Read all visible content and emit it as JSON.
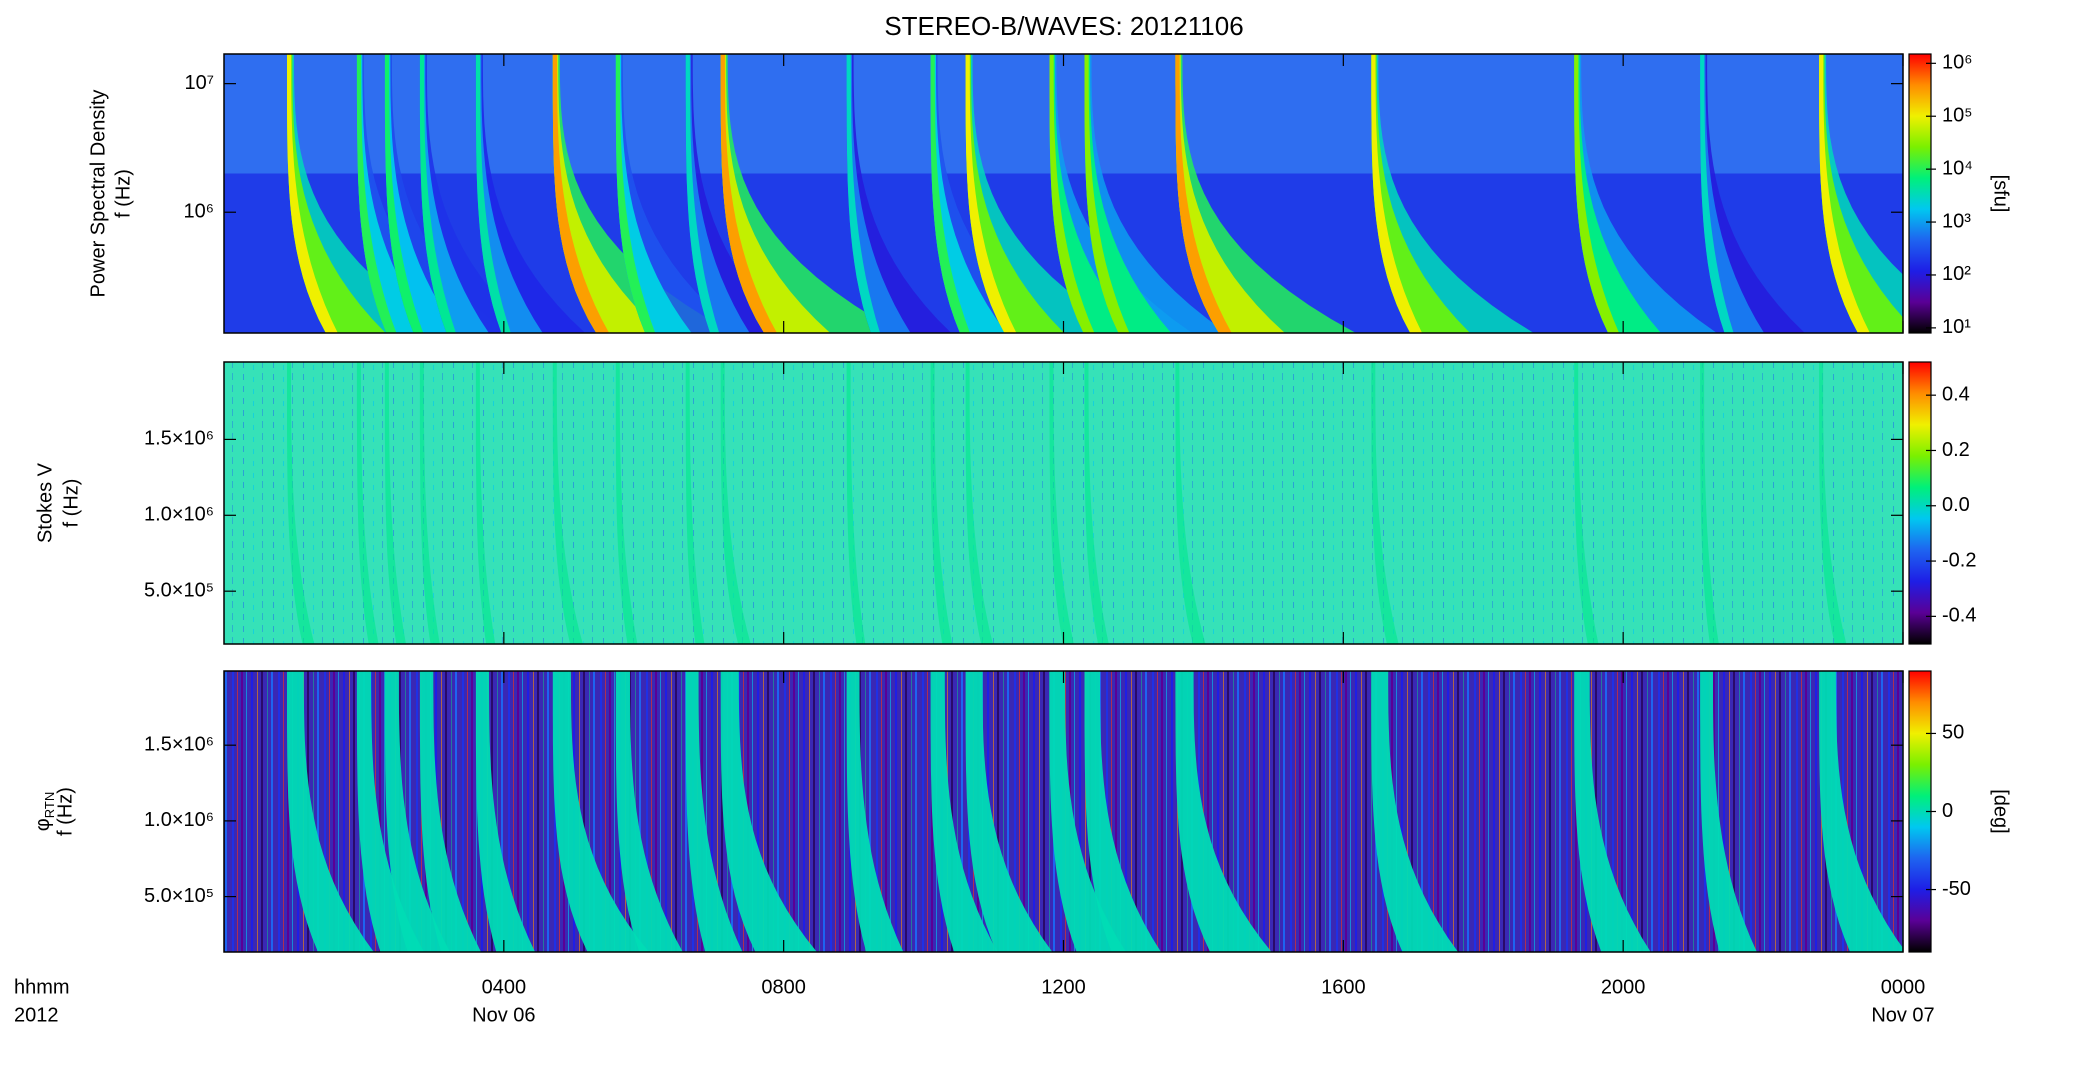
{
  "chart_data": [
    {
      "type": "spectrogram",
      "title": "STEREO-B/WAVES: 20121106",
      "ylabel": [
        "Power Spectral Density",
        "f (Hz)"
      ],
      "xlim": [
        0,
        24
      ],
      "ylim": [
        115000,
        17000000
      ],
      "ylog": true,
      "yticks": [
        {
          "value": 1000000,
          "label": "10⁶"
        },
        {
          "value": 10000000,
          "label": "10⁷"
        }
      ],
      "clim": [
        8,
        1500000
      ],
      "clog": true,
      "cticks": [
        {
          "value": 10,
          "label": "10¹"
        },
        {
          "value": 100,
          "label": "10²"
        },
        {
          "value": 1000,
          "label": "10³"
        },
        {
          "value": 10000,
          "label": "10⁴"
        },
        {
          "value": 100000,
          "label": "10⁵"
        },
        {
          "value": 1000000,
          "label": "10⁶"
        }
      ],
      "clabel": "[sfu]",
      "colormap": [
        "#000000",
        "#5a0096",
        "#1e1ee6",
        "#1e64f0",
        "#00c8f0",
        "#00f07a",
        "#7af000",
        "#f0f000",
        "#ff8c00",
        "#ff0000"
      ],
      "background": "#1f3ce8",
      "upper_band_from": 2000000,
      "upper_background": "#2f6ef0",
      "bursts": [
        {
          "t": 0.9,
          "peak": 100000
        },
        {
          "t": 1.9,
          "peak": 10000
        },
        {
          "t": 2.3,
          "peak": 8000
        },
        {
          "t": 2.8,
          "peak": 5000
        },
        {
          "t": 3.6,
          "peak": 4000
        },
        {
          "t": 4.7,
          "peak": 300000
        },
        {
          "t": 5.6,
          "peak": 10000
        },
        {
          "t": 6.6,
          "peak": 3000
        },
        {
          "t": 7.1,
          "peak": 300000
        },
        {
          "t": 8.9,
          "peak": 3000
        },
        {
          "t": 10.1,
          "peak": 10000
        },
        {
          "t": 10.6,
          "peak": 100000
        },
        {
          "t": 11.8,
          "peak": 30000
        },
        {
          "t": 12.3,
          "peak": 30000
        },
        {
          "t": 13.6,
          "peak": 300000
        },
        {
          "t": 16.4,
          "peak": 100000
        },
        {
          "t": 19.3,
          "peak": 30000
        },
        {
          "t": 21.1,
          "peak": 3000
        },
        {
          "t": 22.8,
          "peak": 100000
        }
      ]
    },
    {
      "type": "spectrogram",
      "ylabel": [
        "Stokes V",
        "f (Hz)"
      ],
      "xlim": [
        0,
        24
      ],
      "ylim": [
        152000,
        2010000
      ],
      "ylog": false,
      "yticks": [
        {
          "value": 500000,
          "label": "5.0×10⁵"
        },
        {
          "value": 1000000,
          "label": "1.0×10⁶"
        },
        {
          "value": 1500000,
          "label": "1.5×10⁶"
        }
      ],
      "clim": [
        -0.5,
        0.52
      ],
      "clog": false,
      "cticks": [
        -0.4,
        -0.2,
        {
          "value": 0,
          "label": "0.0"
        },
        0.2,
        0.4
      ],
      "colormap": [
        "#000000",
        "#5a0096",
        "#1e1ee6",
        "#1e64f0",
        "#00c8f0",
        "#00f07a",
        "#7af000",
        "#f0f000",
        "#ff8c00",
        "#ff0000"
      ],
      "background": "#36e2b8"
    },
    {
      "type": "spectrogram",
      "ylabel_symbol": "φ",
      "ylabel_sub": "RTN",
      "ylabel": [
        "f (Hz)"
      ],
      "xlim": [
        0,
        24
      ],
      "ylim": [
        134000,
        1990000
      ],
      "ylog": false,
      "yticks": [
        {
          "value": 500000,
          "label": "5.0×10⁵"
        },
        {
          "value": 1000000,
          "label": "1.0×10⁶"
        },
        {
          "value": 1500000,
          "label": "1.5×10⁶"
        }
      ],
      "clim": [
        -90,
        90
      ],
      "clog": false,
      "cticks": [
        -50,
        0,
        50
      ],
      "clabel": "[deg]",
      "colormap": [
        "#000000",
        "#5a0096",
        "#1e1ee6",
        "#1e64f0",
        "#00c8f0",
        "#00f07a",
        "#7af000",
        "#f0f000",
        "#ff8c00",
        "#ff0000"
      ],
      "background": "#3a28b4",
      "xticks": [
        {
          "value": 4,
          "label": "0400"
        },
        {
          "value": 8,
          "label": "0800"
        },
        {
          "value": 12,
          "label": "1200"
        },
        {
          "value": 16,
          "label": "1600"
        },
        {
          "value": 20,
          "label": "2000"
        },
        {
          "value": 24,
          "label": "0000"
        }
      ],
      "xticks2": [
        {
          "value": 4,
          "label": "Nov 06"
        },
        {
          "value": 24,
          "label": "Nov 07"
        }
      ],
      "xlabel": [
        "hhmm",
        "2012"
      ]
    }
  ]
}
